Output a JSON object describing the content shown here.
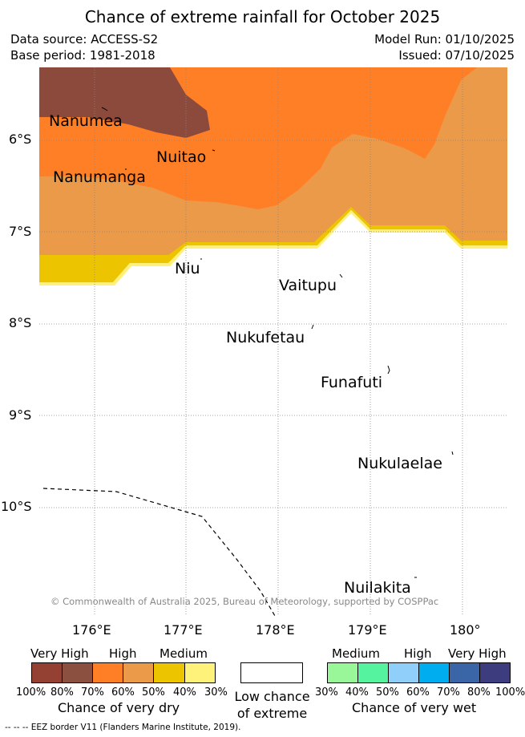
{
  "title": "Chance of extreme rainfall for October 2025",
  "meta": {
    "data_source": "Data source: ACCESS-S2",
    "base_period": "Base period: 1981-2018",
    "model_run": "Model Run: 01/10/2025",
    "issued": "Issued: 07/10/2025"
  },
  "map": {
    "lat_labels": [
      "6°S",
      "7°S",
      "8°S",
      "9°S",
      "10°S"
    ],
    "lon_labels": [
      "176°E",
      "177°E",
      "178°E",
      "179°E",
      "180°"
    ],
    "places": [
      "Nanumea",
      "Nuitao",
      "Nanumanga",
      "Niu",
      "Vaitupu",
      "Nukufetau",
      "Funafuti",
      "Nukulaelae",
      "Nuilakita"
    ],
    "copyright": "© Commonwealth of Australia 2025, Bureau of Meteorology, supported by COSPPac",
    "colors": {
      "very_high_dry": "#8b4a3c",
      "high_dry": "#ff7f27",
      "medium_high_dry": "#ea9a48",
      "medium_dry": "#edc400",
      "low_dry": "#fff07a"
    }
  },
  "legend": {
    "dry": {
      "categories": [
        "Very High",
        "High",
        "Medium"
      ],
      "percent_ticks": [
        "100%",
        "80%",
        "70%",
        "60%",
        "50%",
        "40%",
        "30%"
      ],
      "colors": [
        "#944134",
        "#8b5040",
        "#ff7f27",
        "#ea9a48",
        "#edc400",
        "#fff27a"
      ],
      "title": "Chance of very dry"
    },
    "low": {
      "title_line1": "Low chance",
      "title_line2": "of extreme",
      "color": "#ffffff"
    },
    "wet": {
      "categories": [
        "Medium",
        "High",
        "Very High"
      ],
      "percent_ticks": [
        "30%",
        "40%",
        "50%",
        "60%",
        "70%",
        "80%",
        "100%"
      ],
      "colors": [
        "#99f799",
        "#55f2a0",
        "#8fcff9",
        "#00aef0",
        "#3a66a8",
        "#3c3c7e"
      ],
      "title": "Chance of very wet"
    }
  },
  "footer": "--  --  -- EEZ border V11 (Flanders Marine Institute, 2019)."
}
